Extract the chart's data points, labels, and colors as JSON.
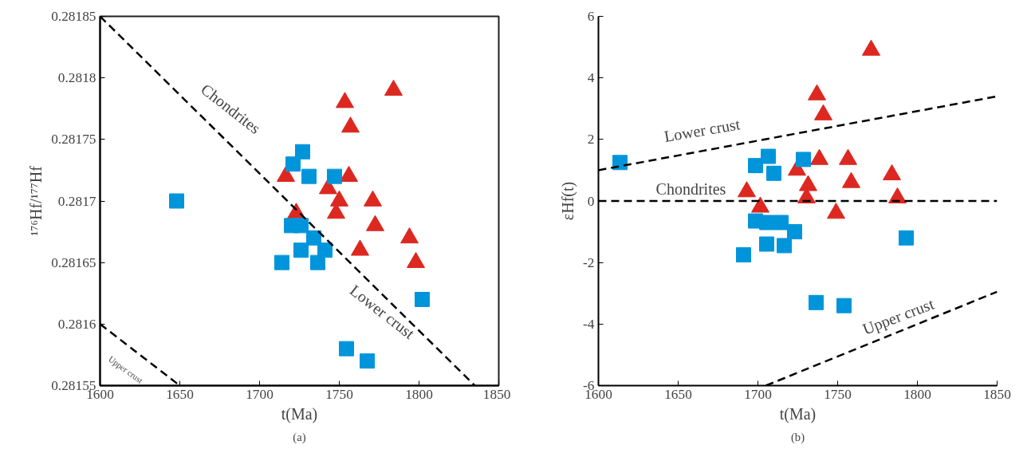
{
  "chart_data": [
    {
      "type": "scatter",
      "title": "(a)",
      "xlabel": "t(Ma)",
      "ylabel": "¹⁷⁶Hf/¹⁷⁷Hf",
      "xlim": [
        1600,
        1850
      ],
      "xticks": [
        1600,
        1650,
        1700,
        1750,
        1800,
        1850
      ],
      "ylim": [
        0.28155,
        0.28185
      ],
      "yticks": [
        0.28155,
        0.2816,
        0.28165,
        0.2817,
        0.28175,
        0.2818,
        0.28185
      ],
      "grid": false,
      "series": [
        {
          "marker": "triangle",
          "color": "#dc2820",
          "x": [
            1753.5,
            1784,
            1757,
            1756,
            1716.5,
            1723,
            1743,
            1750,
            1748,
            1771,
            1772.5,
            1763,
            1794,
            1798
          ],
          "values": [
            0.28178,
            0.28179,
            0.28176,
            0.28172,
            0.28172,
            0.28169,
            0.28171,
            0.2817,
            0.28169,
            0.2817,
            0.28168,
            0.28166,
            0.28167,
            0.28165
          ]
        },
        {
          "marker": "square",
          "color": "#0095db",
          "x": [
            1648,
            1727,
            1721,
            1731,
            1747,
            1720,
            1726,
            1734,
            1726,
            1741,
            1736.5,
            1714,
            1802,
            1754.5,
            1767.5
          ],
          "values": [
            0.2817,
            0.28174,
            0.28173,
            0.28172,
            0.28172,
            0.28168,
            0.28168,
            0.28167,
            0.28166,
            0.28166,
            0.28165,
            0.28165,
            0.28162,
            0.28158,
            0.28157
          ]
        },
        {
          "type": "line",
          "line_style": "dashed",
          "marker": "none",
          "color": "#000000",
          "x": [
            1600,
            1835
          ],
          "values": [
            0.28185,
            0.28155
          ]
        },
        {
          "type": "line",
          "line_style": "dashed",
          "marker": "none",
          "color": "#000000",
          "x": [
            1600,
            1650
          ],
          "values": [
            0.2816,
            0.28155
          ]
        }
      ],
      "annotations": [
        "Chondrites",
        "Lower crust",
        "Upper crust"
      ]
    },
    {
      "type": "scatter",
      "title": "(b)",
      "xlabel": "t(Ma)",
      "ylabel": "εHf(t)",
      "xlim": [
        1600,
        1850
      ],
      "xticks": [
        1600,
        1650,
        1700,
        1750,
        1800,
        1850
      ],
      "ylim": [
        -6,
        6
      ],
      "yticks": [
        -6,
        -4,
        -2,
        0,
        2,
        4,
        6
      ],
      "grid": false,
      "series": [
        {
          "marker": "triangle",
          "color": "#dc2820",
          "x": [
            1771,
            1737,
            1741,
            1738.5,
            1756.5,
            1724.5,
            1784,
            1758.5,
            1731.5,
            1693,
            1730.5,
            1787.5,
            1701.5,
            1749
          ],
          "values": [
            4.9,
            3.45,
            2.8,
            1.35,
            1.35,
            1.0,
            0.85,
            0.6,
            0.5,
            0.3,
            0.1,
            0.1,
            -0.2,
            -0.4
          ]
        },
        {
          "marker": "square",
          "color": "#0095db",
          "x": [
            1613.5,
            1698.5,
            1706.5,
            1710,
            1728.5,
            1698.5,
            1705.5,
            1714.5,
            1723,
            1705.5,
            1716.5,
            1691,
            1793,
            1736.5,
            1754
          ],
          "values": [
            1.25,
            1.15,
            1.45,
            0.9,
            1.35,
            -0.65,
            -0.7,
            -0.7,
            -1.0,
            -1.4,
            -1.45,
            -1.75,
            -1.2,
            -3.3,
            -3.4
          ]
        },
        {
          "type": "line",
          "line_style": "dashed",
          "marker": "none",
          "color": "#000000",
          "x": [
            1600,
            1850
          ],
          "values": [
            1.0,
            3.4
          ]
        },
        {
          "type": "line",
          "line_style": "dashed",
          "marker": "none",
          "color": "#000000",
          "x": [
            1600,
            1850
          ],
          "values": [
            0,
            0
          ]
        },
        {
          "type": "line",
          "line_style": "dashed",
          "marker": "none",
          "color": "#000000",
          "x": [
            1705,
            1850
          ],
          "values": [
            -6,
            -2.95
          ]
        }
      ],
      "annotations": [
        "Lower crust",
        "Chondrites",
        "Upper crust"
      ]
    }
  ]
}
